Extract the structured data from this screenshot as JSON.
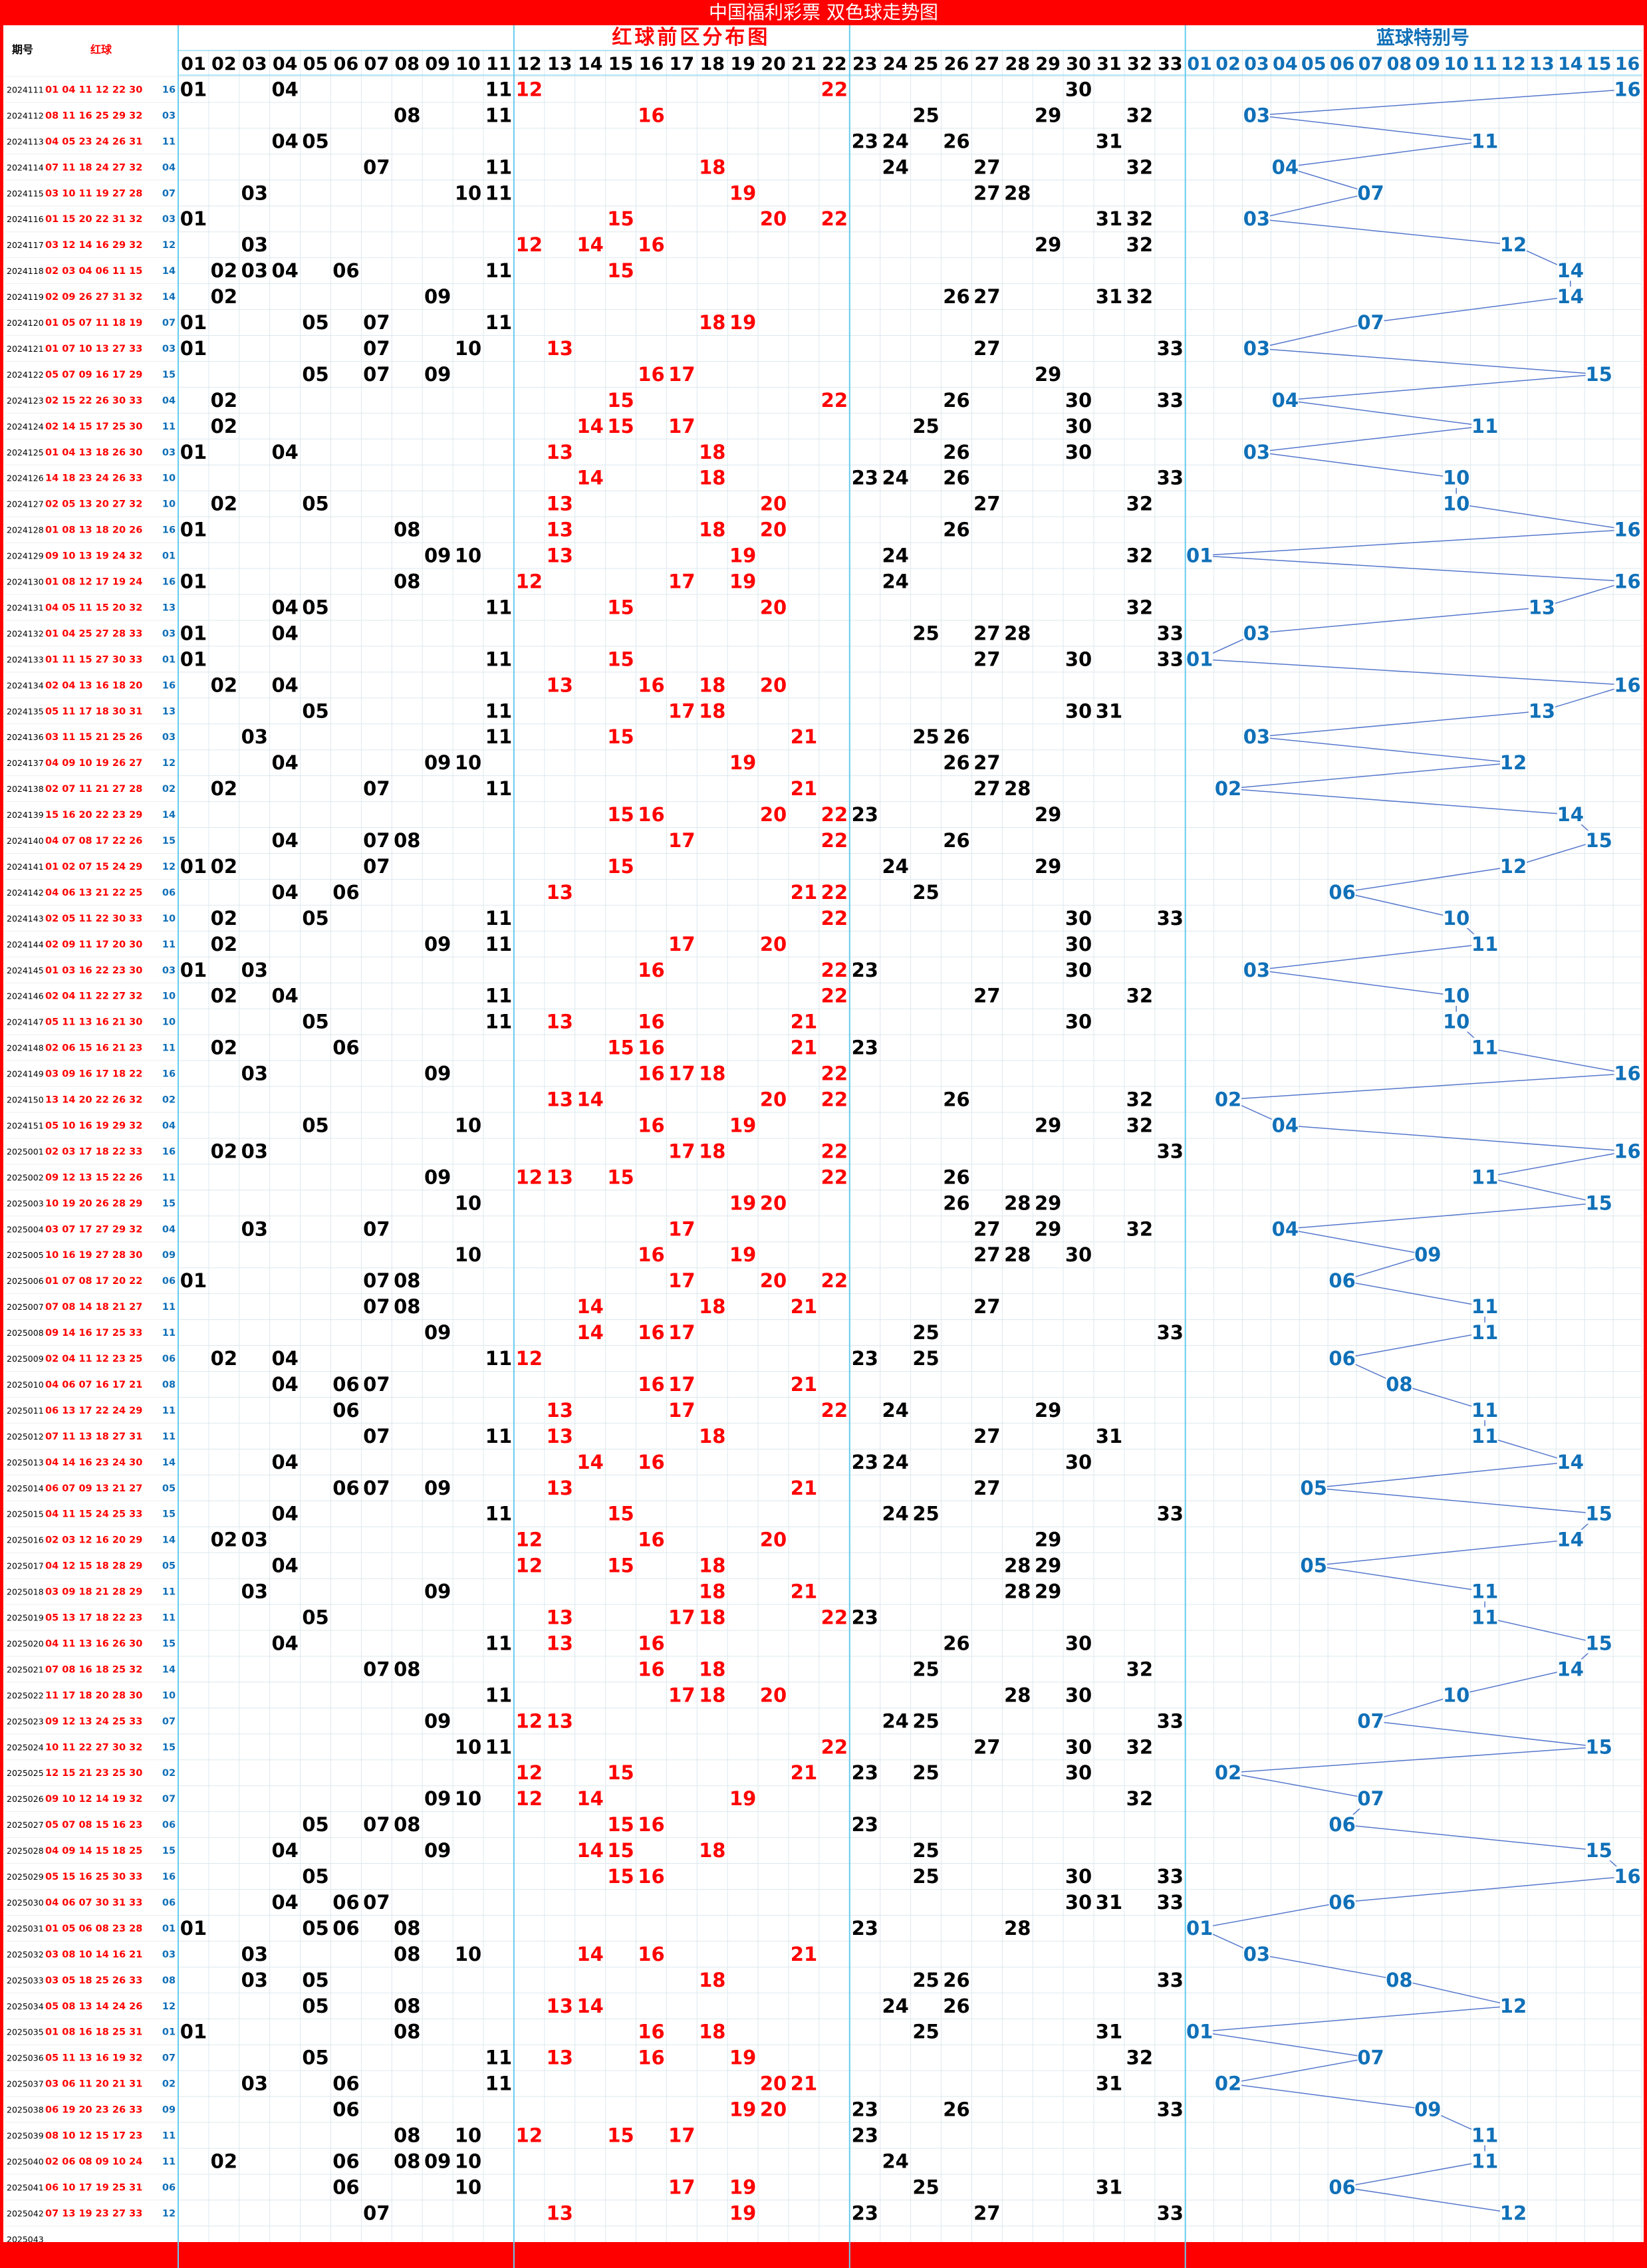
{
  "title": "中国福利彩票 双色球走势图",
  "headers": {
    "issue": "期号",
    "red_ball": "红球",
    "red_zone": "红球前区分布图",
    "blue_zone": "蓝球特别号"
  },
  "colors": {
    "frame_red": "#ff0000",
    "red_num": "#ff0000",
    "black_num": "#000000",
    "blue_num": "#1070b8",
    "blue_line": "#5577cc",
    "grid": "#dde8ee",
    "sep": "#66ccee"
  },
  "red_column_labels": [
    "01",
    "02",
    "03",
    "04",
    "05",
    "06",
    "07",
    "08",
    "09",
    "10",
    "11",
    "12",
    "13",
    "14",
    "15",
    "16",
    "17",
    "18",
    "19",
    "20",
    "21",
    "22",
    "23",
    "24",
    "25",
    "26",
    "27",
    "28",
    "29",
    "30",
    "31",
    "32",
    "33"
  ],
  "blue_column_labels": [
    "01",
    "02",
    "03",
    "04",
    "05",
    "06",
    "07",
    "08",
    "09",
    "10",
    "11",
    "12",
    "13",
    "14",
    "15",
    "16"
  ],
  "chart_data": {
    "type": "table",
    "series": [
      {
        "name": "红球"
      },
      {
        "name": "蓝球特别号"
      }
    ],
    "rows": [
      {
        "issue": "2024111",
        "red": [
          1,
          4,
          11,
          12,
          22,
          30
        ],
        "blue": 16
      },
      {
        "issue": "2024112",
        "red": [
          8,
          11,
          16,
          25,
          29,
          32
        ],
        "blue": 3
      },
      {
        "issue": "2024113",
        "red": [
          4,
          5,
          23,
          24,
          26,
          31
        ],
        "blue": 11
      },
      {
        "issue": "2024114",
        "red": [
          7,
          11,
          18,
          24,
          27,
          32
        ],
        "blue": 4
      },
      {
        "issue": "2024115",
        "red": [
          3,
          10,
          11,
          19,
          27,
          28
        ],
        "blue": 7
      },
      {
        "issue": "2024116",
        "red": [
          1,
          15,
          20,
          22,
          31,
          32
        ],
        "blue": 3
      },
      {
        "issue": "2024117",
        "red": [
          3,
          12,
          14,
          16,
          29,
          32
        ],
        "blue": 12
      },
      {
        "issue": "2024118",
        "red": [
          2,
          3,
          4,
          6,
          11,
          15
        ],
        "blue": 14
      },
      {
        "issue": "2024119",
        "red": [
          2,
          9,
          26,
          27,
          31,
          32
        ],
        "blue": 14
      },
      {
        "issue": "2024120",
        "red": [
          1,
          5,
          7,
          11,
          18,
          19
        ],
        "blue": 7
      },
      {
        "issue": "2024121",
        "red": [
          1,
          7,
          10,
          13,
          27,
          33
        ],
        "blue": 3
      },
      {
        "issue": "2024122",
        "red": [
          5,
          7,
          9,
          16,
          17,
          29
        ],
        "blue": 15
      },
      {
        "issue": "2024123",
        "red": [
          2,
          15,
          22,
          26,
          30,
          33
        ],
        "blue": 4
      },
      {
        "issue": "2024124",
        "red": [
          2,
          14,
          15,
          17,
          25,
          30
        ],
        "blue": 11
      },
      {
        "issue": "2024125",
        "red": [
          1,
          4,
          13,
          18,
          26,
          30
        ],
        "blue": 3
      },
      {
        "issue": "2024126",
        "red": [
          14,
          18,
          23,
          24,
          26,
          33
        ],
        "blue": 10
      },
      {
        "issue": "2024127",
        "red": [
          2,
          5,
          13,
          20,
          27,
          32
        ],
        "blue": 10
      },
      {
        "issue": "2024128",
        "red": [
          1,
          8,
          13,
          18,
          20,
          26
        ],
        "blue": 16
      },
      {
        "issue": "2024129",
        "red": [
          9,
          10,
          13,
          19,
          24,
          32
        ],
        "blue": 1
      },
      {
        "issue": "2024130",
        "red": [
          1,
          8,
          12,
          17,
          19,
          24
        ],
        "blue": 16
      },
      {
        "issue": "2024131",
        "red": [
          4,
          5,
          11,
          15,
          20,
          32
        ],
        "blue": 13
      },
      {
        "issue": "2024132",
        "red": [
          1,
          4,
          25,
          27,
          28,
          33
        ],
        "blue": 3
      },
      {
        "issue": "2024133",
        "red": [
          1,
          11,
          15,
          27,
          30,
          33
        ],
        "blue": 1
      },
      {
        "issue": "2024134",
        "red": [
          2,
          4,
          13,
          16,
          18,
          20
        ],
        "blue": 16
      },
      {
        "issue": "2024135",
        "red": [
          5,
          11,
          17,
          18,
          30,
          31
        ],
        "blue": 13
      },
      {
        "issue": "2024136",
        "red": [
          3,
          11,
          15,
          21,
          25,
          26
        ],
        "blue": 3
      },
      {
        "issue": "2024137",
        "red": [
          4,
          9,
          10,
          19,
          26,
          27
        ],
        "blue": 12
      },
      {
        "issue": "2024138",
        "red": [
          2,
          7,
          11,
          21,
          27,
          28
        ],
        "blue": 2
      },
      {
        "issue": "2024139",
        "red": [
          15,
          16,
          20,
          22,
          23,
          29
        ],
        "blue": 14
      },
      {
        "issue": "2024140",
        "red": [
          4,
          7,
          8,
          17,
          22,
          26
        ],
        "blue": 15
      },
      {
        "issue": "2024141",
        "red": [
          1,
          2,
          7,
          15,
          24,
          29
        ],
        "blue": 12
      },
      {
        "issue": "2024142",
        "red": [
          4,
          6,
          13,
          21,
          22,
          25
        ],
        "blue": 6
      },
      {
        "issue": "2024143",
        "red": [
          2,
          5,
          11,
          22,
          30,
          33
        ],
        "blue": 10
      },
      {
        "issue": "2024144",
        "red": [
          2,
          9,
          11,
          17,
          20,
          30
        ],
        "blue": 11
      },
      {
        "issue": "2024145",
        "red": [
          1,
          3,
          16,
          22,
          23,
          30
        ],
        "blue": 3
      },
      {
        "issue": "2024146",
        "red": [
          2,
          4,
          11,
          22,
          27,
          32
        ],
        "blue": 10
      },
      {
        "issue": "2024147",
        "red": [
          5,
          11,
          13,
          16,
          21,
          30
        ],
        "blue": 10
      },
      {
        "issue": "2024148",
        "red": [
          2,
          6,
          15,
          16,
          21,
          23
        ],
        "blue": 11
      },
      {
        "issue": "2024149",
        "red": [
          3,
          9,
          16,
          17,
          18,
          22
        ],
        "blue": 16
      },
      {
        "issue": "2024150",
        "red": [
          13,
          14,
          20,
          22,
          26,
          32
        ],
        "blue": 2
      },
      {
        "issue": "2024151",
        "red": [
          5,
          10,
          16,
          19,
          29,
          32
        ],
        "blue": 4
      },
      {
        "issue": "2025001",
        "red": [
          2,
          3,
          17,
          18,
          22,
          33
        ],
        "blue": 16
      },
      {
        "issue": "2025002",
        "red": [
          9,
          12,
          13,
          15,
          22,
          26
        ],
        "blue": 11
      },
      {
        "issue": "2025003",
        "red": [
          10,
          19,
          20,
          26,
          28,
          29
        ],
        "blue": 15
      },
      {
        "issue": "2025004",
        "red": [
          3,
          7,
          17,
          27,
          29,
          32
        ],
        "blue": 4
      },
      {
        "issue": "2025005",
        "red": [
          10,
          16,
          19,
          27,
          28,
          30
        ],
        "blue": 9
      },
      {
        "issue": "2025006",
        "red": [
          1,
          7,
          8,
          17,
          20,
          22
        ],
        "blue": 6
      },
      {
        "issue": "2025007",
        "red": [
          7,
          8,
          14,
          18,
          21,
          27
        ],
        "blue": 11
      },
      {
        "issue": "2025008",
        "red": [
          9,
          14,
          16,
          17,
          25,
          33
        ],
        "blue": 11
      },
      {
        "issue": "2025009",
        "red": [
          2,
          4,
          11,
          12,
          23,
          25
        ],
        "blue": 6
      },
      {
        "issue": "2025010",
        "red": [
          4,
          6,
          7,
          16,
          17,
          21
        ],
        "blue": 8
      },
      {
        "issue": "2025011",
        "red": [
          6,
          13,
          17,
          22,
          24,
          29
        ],
        "blue": 11
      },
      {
        "issue": "2025012",
        "red": [
          7,
          11,
          13,
          18,
          27,
          31
        ],
        "blue": 11
      },
      {
        "issue": "2025013",
        "red": [
          4,
          14,
          16,
          23,
          24,
          30
        ],
        "blue": 14
      },
      {
        "issue": "2025014",
        "red": [
          6,
          7,
          9,
          13,
          21,
          27
        ],
        "blue": 5
      },
      {
        "issue": "2025015",
        "red": [
          4,
          11,
          15,
          24,
          25,
          33
        ],
        "blue": 15
      },
      {
        "issue": "2025016",
        "red": [
          2,
          3,
          12,
          16,
          20,
          29
        ],
        "blue": 14
      },
      {
        "issue": "2025017",
        "red": [
          4,
          12,
          15,
          18,
          28,
          29
        ],
        "blue": 5
      },
      {
        "issue": "2025018",
        "red": [
          3,
          9,
          18,
          21,
          28,
          29
        ],
        "blue": 11
      },
      {
        "issue": "2025019",
        "red": [
          5,
          13,
          17,
          18,
          22,
          23
        ],
        "blue": 11
      },
      {
        "issue": "2025020",
        "red": [
          4,
          11,
          13,
          16,
          26,
          30
        ],
        "blue": 15
      },
      {
        "issue": "2025021",
        "red": [
          7,
          8,
          16,
          18,
          25,
          32
        ],
        "blue": 14
      },
      {
        "issue": "2025022",
        "red": [
          11,
          17,
          18,
          20,
          28,
          30
        ],
        "blue": 10
      },
      {
        "issue": "2025023",
        "red": [
          9,
          12,
          13,
          24,
          25,
          33
        ],
        "blue": 7
      },
      {
        "issue": "2025024",
        "red": [
          10,
          11,
          22,
          27,
          30,
          32
        ],
        "blue": 15
      },
      {
        "issue": "2025025",
        "red": [
          12,
          15,
          21,
          23,
          25,
          30
        ],
        "blue": 2
      },
      {
        "issue": "2025026",
        "red": [
          9,
          10,
          12,
          14,
          19,
          32
        ],
        "blue": 7
      },
      {
        "issue": "2025027",
        "red": [
          5,
          7,
          8,
          15,
          16,
          23
        ],
        "blue": 6
      },
      {
        "issue": "2025028",
        "red": [
          4,
          9,
          14,
          15,
          18,
          25
        ],
        "blue": 15
      },
      {
        "issue": "2025029",
        "red": [
          5,
          15,
          16,
          25,
          30,
          33
        ],
        "blue": 16
      },
      {
        "issue": "2025030",
        "red": [
          4,
          6,
          7,
          30,
          31,
          33
        ],
        "blue": 6
      },
      {
        "issue": "2025031",
        "red": [
          1,
          5,
          6,
          8,
          23,
          28
        ],
        "blue": 1
      },
      {
        "issue": "2025032",
        "red": [
          3,
          8,
          10,
          14,
          16,
          21
        ],
        "blue": 3
      },
      {
        "issue": "2025033",
        "red": [
          3,
          5,
          18,
          25,
          26,
          33
        ],
        "blue": 8
      },
      {
        "issue": "2025034",
        "red": [
          5,
          8,
          13,
          14,
          24,
          26
        ],
        "blue": 12
      },
      {
        "issue": "2025035",
        "red": [
          1,
          8,
          16,
          18,
          25,
          31
        ],
        "blue": 1
      },
      {
        "issue": "2025036",
        "red": [
          5,
          11,
          13,
          16,
          19,
          32
        ],
        "blue": 7
      },
      {
        "issue": "2025037",
        "red": [
          3,
          6,
          11,
          20,
          21,
          31
        ],
        "blue": 2
      },
      {
        "issue": "2025038",
        "red": [
          6,
          19,
          20,
          23,
          26,
          33
        ],
        "blue": 9
      },
      {
        "issue": "2025039",
        "red": [
          8,
          10,
          12,
          15,
          17,
          23
        ],
        "blue": 11
      },
      {
        "issue": "2025040",
        "red": [
          2,
          6,
          8,
          9,
          10,
          24
        ],
        "blue": 11
      },
      {
        "issue": "2025041",
        "red": [
          6,
          10,
          17,
          19,
          25,
          31
        ],
        "blue": 6
      },
      {
        "issue": "2025042",
        "red": [
          7,
          13,
          19,
          23,
          27,
          33
        ],
        "blue": 12
      },
      {
        "issue": "2025043",
        "red": [],
        "blue": null
      }
    ]
  }
}
